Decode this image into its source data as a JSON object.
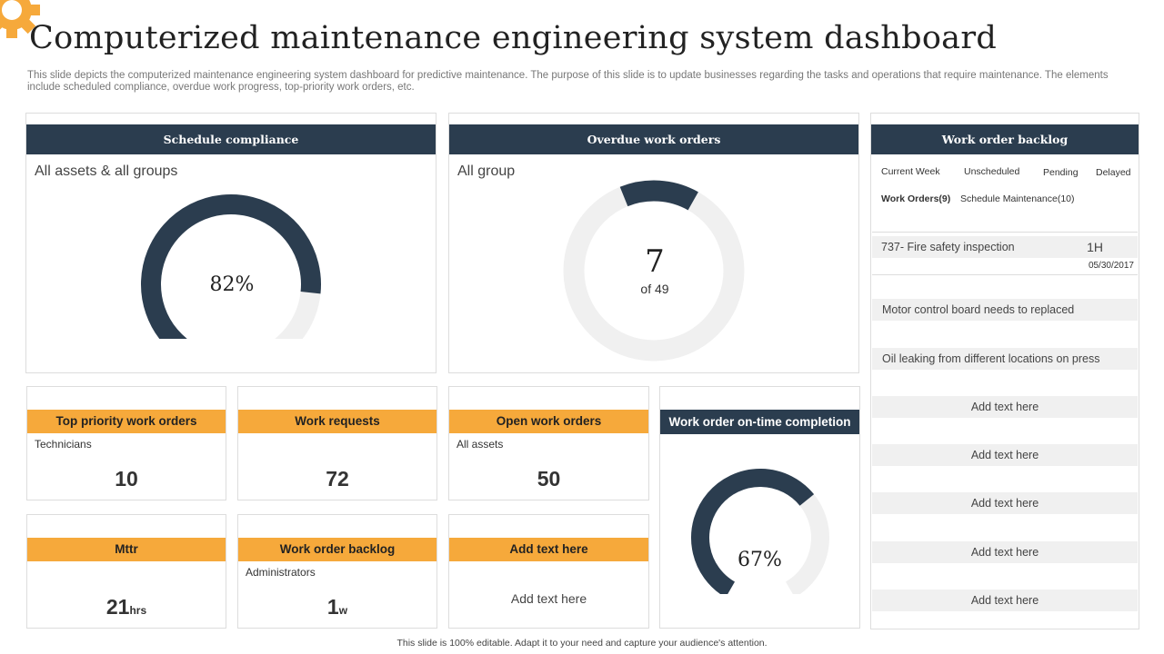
{
  "title": "Computerized maintenance engineering system dashboard",
  "description": "This slide depicts the computerized maintenance engineering system dashboard for predictive maintenance. The purpose of this slide is to update businesses regarding the tasks and operations that require maintenance. The elements include scheduled compliance, overdue work progress, top-priority work orders, etc.",
  "colors": {
    "navy": "#2b3d4f",
    "orange": "#f6a93b",
    "track": "#f0f0f0",
    "gear": "#f6a93b"
  },
  "schedule": {
    "header": "Schedule compliance",
    "sub": "All assets & all groups",
    "value_label": "82%",
    "value": 82
  },
  "overdue": {
    "header": "Overdue work orders",
    "sub": "All group",
    "value": "7",
    "of": "of 49",
    "count": 7,
    "total": 49
  },
  "backlog": {
    "header": "Work order backlog",
    "tabs": [
      "Current Week",
      "Unscheduled",
      "Pending",
      "Delayed"
    ],
    "work_orders": "Work Orders(9)",
    "schedule_maint": "Schedule Maintenance(10)",
    "item": {
      "title": "737- Fire safety inspection",
      "duration": "1H",
      "date": "05/30/2017"
    },
    "rows": [
      "Motor control board needs to replaced",
      "Oil leaking from different locations on press",
      "Add text here",
      "Add text here",
      "Add text here",
      "Add text here",
      "Add text here"
    ]
  },
  "cards": [
    {
      "header": "Top priority work orders",
      "sub": "Technicians",
      "value": "10",
      "unit": ""
    },
    {
      "header": "Work requests",
      "sub": "",
      "value": "72",
      "unit": ""
    },
    {
      "header": "Open work orders",
      "sub": "All assets",
      "value": "50",
      "unit": ""
    },
    {
      "header": "Mttr",
      "sub": "",
      "value": "21",
      "unit": "hrs"
    },
    {
      "header": "Work order backlog",
      "sub": "Administrators",
      "value": "1",
      "unit": "w"
    },
    {
      "header": "Add text here",
      "sub": "",
      "value": "",
      "unit": "",
      "text": "Add text here"
    }
  ],
  "ontime": {
    "header": "Work order on-time completion",
    "value_label": "67%",
    "value": 67
  },
  "footer": "This slide is 100% editable. Adapt it to your need and capture your audience's attention."
}
